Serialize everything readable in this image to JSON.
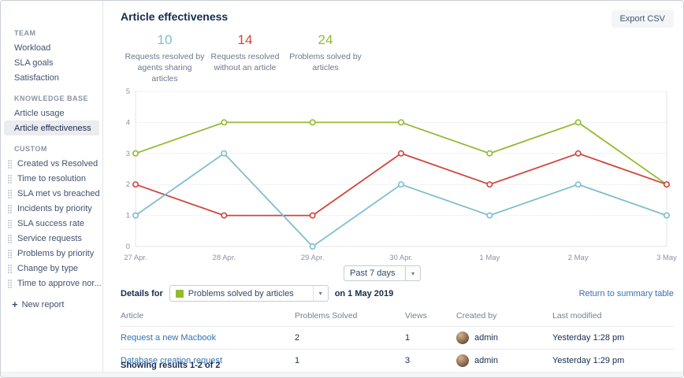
{
  "sidebar": {
    "sections": [
      {
        "label": "TEAM",
        "items": [
          {
            "label": "Workload"
          },
          {
            "label": "SLA goals"
          },
          {
            "label": "Satisfaction"
          }
        ]
      },
      {
        "label": "KNOWLEDGE BASE",
        "items": [
          {
            "label": "Article usage"
          },
          {
            "label": "Article effectiveness",
            "selected": true
          }
        ]
      },
      {
        "label": "CUSTOM",
        "items": [
          {
            "label": "Created vs Resolved"
          },
          {
            "label": "Time to resolution"
          },
          {
            "label": "SLA met vs breached"
          },
          {
            "label": "Incidents by priority"
          },
          {
            "label": "SLA success rate"
          },
          {
            "label": "Service requests"
          },
          {
            "label": "Problems by priority"
          },
          {
            "label": "Change by type"
          },
          {
            "label": "Time to approve nor..."
          }
        ]
      }
    ],
    "new_report_label": "New report"
  },
  "header": {
    "title": "Article effectiveness",
    "export_button": "Export CSV"
  },
  "stats": [
    {
      "value": "10",
      "label": "Requests resolved by agents sharing articles",
      "color": "#7fbdd1"
    },
    {
      "value": "14",
      "label": "Requests resolved without an article",
      "color": "#d0453c"
    },
    {
      "value": "24",
      "label": "Problems solved by articles",
      "color": "#94ba32"
    }
  ],
  "chart_data": {
    "type": "line",
    "x": [
      "27 Apr.",
      "28 Apr.",
      "29 Apr.",
      "30 Apr.",
      "1 May",
      "2 May",
      "3 May"
    ],
    "series": [
      {
        "name": "Problems solved by articles",
        "color": "#94ba32",
        "values": [
          3,
          4,
          4,
          4,
          3,
          4,
          2
        ]
      },
      {
        "name": "Requests resolved without an article",
        "color": "#d0453c",
        "values": [
          2,
          1,
          1,
          3,
          2,
          3,
          2
        ]
      },
      {
        "name": "Requests resolved by agents sharing articles",
        "color": "#7fbdd1",
        "values": [
          1,
          3,
          0,
          2,
          1,
          2,
          1
        ]
      }
    ],
    "ylim": [
      0,
      5
    ],
    "yticks": [
      0,
      1,
      2,
      3,
      4,
      5
    ],
    "grid": true,
    "legend": false
  },
  "period_select": {
    "value": "Past 7 days"
  },
  "details": {
    "prefix": "Details for",
    "select_value": "Problems solved by articles",
    "select_color": "#94ba32",
    "suffix": "on 1 May 2019",
    "return_link": "Return to summary table"
  },
  "table": {
    "columns": [
      "Article",
      "Problems Solved",
      "Views",
      "Created by",
      "Last modified"
    ],
    "rows": [
      {
        "article": "Request a new Macbook",
        "problems_solved": "2",
        "views": "1",
        "created_by": "admin",
        "last_modified": "Yesterday 1:28 pm"
      },
      {
        "article": "Database creation request",
        "problems_solved": "1",
        "views": "3",
        "created_by": "admin",
        "last_modified": "Yesterday 1:29 pm"
      }
    ],
    "footer": "Showing results 1-2 of 2"
  }
}
